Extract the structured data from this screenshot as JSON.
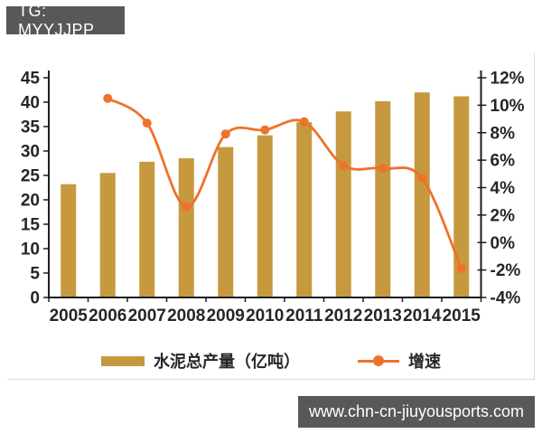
{
  "badge": {
    "label": "TG: MYYJJPP"
  },
  "footer": {
    "url": "www.chn-cn-jiuyousports.com"
  },
  "colors": {
    "bar": "#C6993E",
    "line": "#ED722B",
    "axis": "#1e1e1e",
    "tick_text": "#262626",
    "badge_bg": "#58585a",
    "frame_border": "#dcdcdc"
  },
  "chart_data": {
    "type": "bar",
    "subtype": "combo-bar-line",
    "categories": [
      "2005",
      "2006",
      "2007",
      "2008",
      "2009",
      "2010",
      "2011",
      "2012",
      "2013",
      "2014",
      "2015"
    ],
    "series": [
      {
        "name": "水泥总产量（亿吨）",
        "type": "bar",
        "axis": "left",
        "values": [
          23.2,
          25.5,
          27.8,
          28.5,
          30.8,
          33.2,
          35.9,
          38.1,
          40.2,
          42.0,
          41.2
        ]
      },
      {
        "name": "增速",
        "type": "line",
        "axis": "right",
        "values": [
          null,
          10.5,
          8.7,
          2.6,
          7.9,
          8.2,
          8.8,
          5.6,
          5.4,
          4.7,
          -1.9
        ]
      }
    ],
    "left_axis": {
      "min": 0,
      "max": 45,
      "step": 5,
      "tick_labels": [
        "0",
        "5",
        "10",
        "15",
        "20",
        "25",
        "30",
        "35",
        "40",
        "45"
      ]
    },
    "right_axis": {
      "min": -4,
      "max": 12,
      "step": 2,
      "tick_labels": [
        "-4%",
        "-2%",
        "0%",
        "2%",
        "4%",
        "6%",
        "8%",
        "10%",
        "12%"
      ]
    },
    "title": "",
    "xlabel": "",
    "ylabel": "",
    "grid": false,
    "legend_position": "bottom"
  }
}
